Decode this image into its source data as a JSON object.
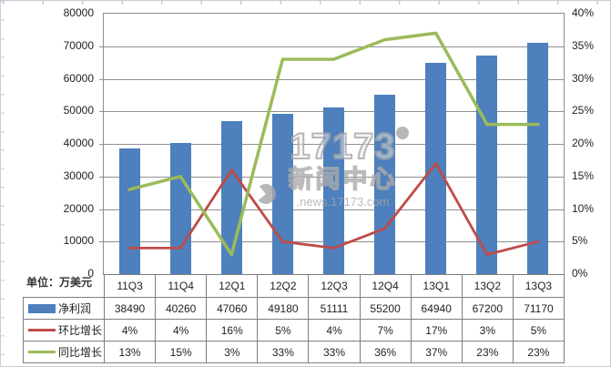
{
  "unit_label": "单位：万美元",
  "watermark": {
    "logo_text": "17173",
    "title": "新闻中心",
    "url_text": ".news.17173.com"
  },
  "chart_data": {
    "type": "combo-bar-line",
    "grid": "horizontal-only",
    "legend_position": "data-table-left",
    "categories": [
      "11Q3",
      "11Q4",
      "12Q1",
      "12Q2",
      "12Q3",
      "12Q4",
      "13Q1",
      "13Q2",
      "13Q3"
    ],
    "series": [
      {
        "key": "net_profit",
        "name": "净利润",
        "chart": "bar",
        "axis": "left",
        "color": "#4D80BC",
        "values": [
          38490,
          40260,
          47060,
          49180,
          51111,
          55200,
          64940,
          67200,
          71170
        ],
        "display": [
          "38490",
          "40260",
          "47060",
          "49180",
          "51111",
          "55200",
          "64940",
          "67200",
          "71170"
        ]
      },
      {
        "key": "qoq_growth",
        "name": "环比增长",
        "chart": "line",
        "axis": "right",
        "color": "#BF4B48",
        "values": [
          4,
          4,
          16,
          5,
          4,
          7,
          17,
          3,
          5
        ],
        "display": [
          "4%",
          "4%",
          "16%",
          "5%",
          "4%",
          "7%",
          "17%",
          "3%",
          "5%"
        ]
      },
      {
        "key": "yoy_growth",
        "name": "同比增长",
        "chart": "line",
        "axis": "right",
        "color": "#9BBB59",
        "values": [
          13,
          15,
          3,
          33,
          33,
          36,
          37,
          23,
          23
        ],
        "display": [
          "13%",
          "15%",
          "3%",
          "33%",
          "33%",
          "36%",
          "37%",
          "23%",
          "23%"
        ]
      }
    ],
    "left_axis": {
      "min": 0,
      "max": 80000,
      "step": 10000,
      "tick_labels": [
        "80000",
        "70000",
        "60000",
        "50000",
        "40000",
        "30000",
        "20000",
        "10000",
        "0"
      ]
    },
    "right_axis": {
      "min": 0,
      "max": 40,
      "step": 5,
      "tick_labels": [
        "40%",
        "35%",
        "30%",
        "25%",
        "20%",
        "15%",
        "10%",
        "5%",
        "0%"
      ]
    }
  }
}
